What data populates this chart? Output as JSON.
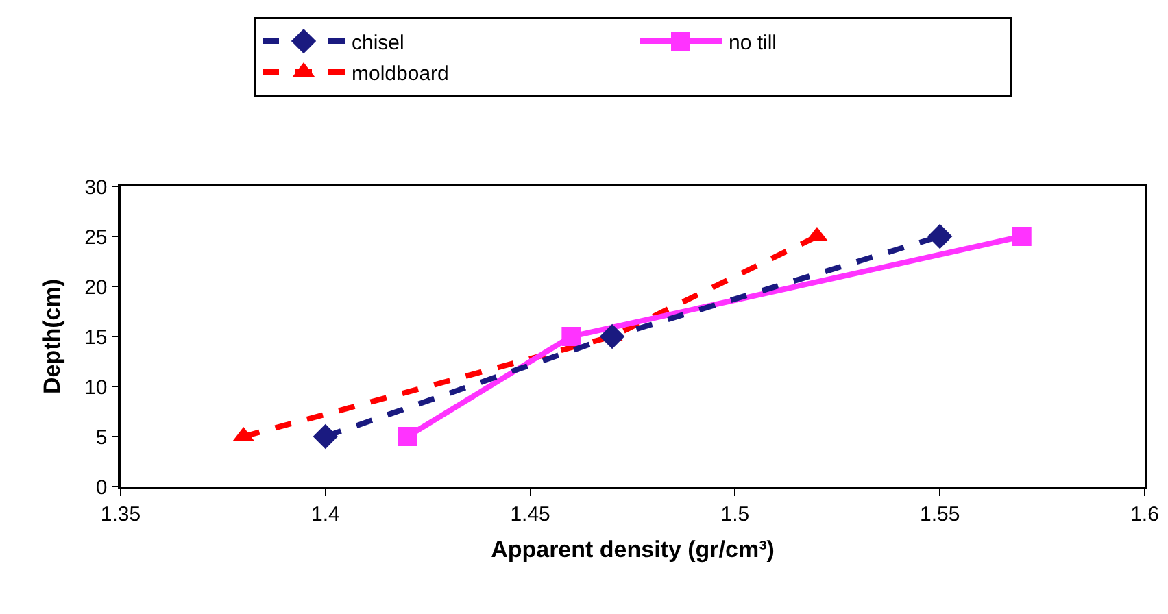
{
  "chart_data": {
    "type": "line",
    "xlabel": "Apparent density (gr/cm³)",
    "ylabel": "Depth(cm)",
    "xlim": [
      1.35,
      1.6
    ],
    "xticks": [
      1.35,
      1.4,
      1.45,
      1.5,
      1.55,
      1.6
    ],
    "ylim": [
      0,
      30
    ],
    "yticks": [
      0,
      5,
      10,
      15,
      20,
      25,
      30
    ],
    "grid": false,
    "legend": "top",
    "series": [
      {
        "name": "chisel",
        "color": "#1a1a80",
        "x": [
          1.4,
          1.47,
          1.55
        ],
        "values": [
          5,
          15,
          25
        ],
        "marker": "diamond",
        "line_style": "dashed"
      },
      {
        "name": "no till",
        "color": "#ff33ff",
        "x": [
          1.42,
          1.46,
          1.57
        ],
        "values": [
          5,
          15,
          25
        ],
        "marker": "square",
        "line_style": "solid"
      },
      {
        "name": "moldboard",
        "color": "#ff0000",
        "x": [
          1.38,
          1.47,
          1.52
        ],
        "values": [
          5,
          15,
          25
        ],
        "marker": "triangle",
        "line_style": "dashed"
      }
    ]
  }
}
